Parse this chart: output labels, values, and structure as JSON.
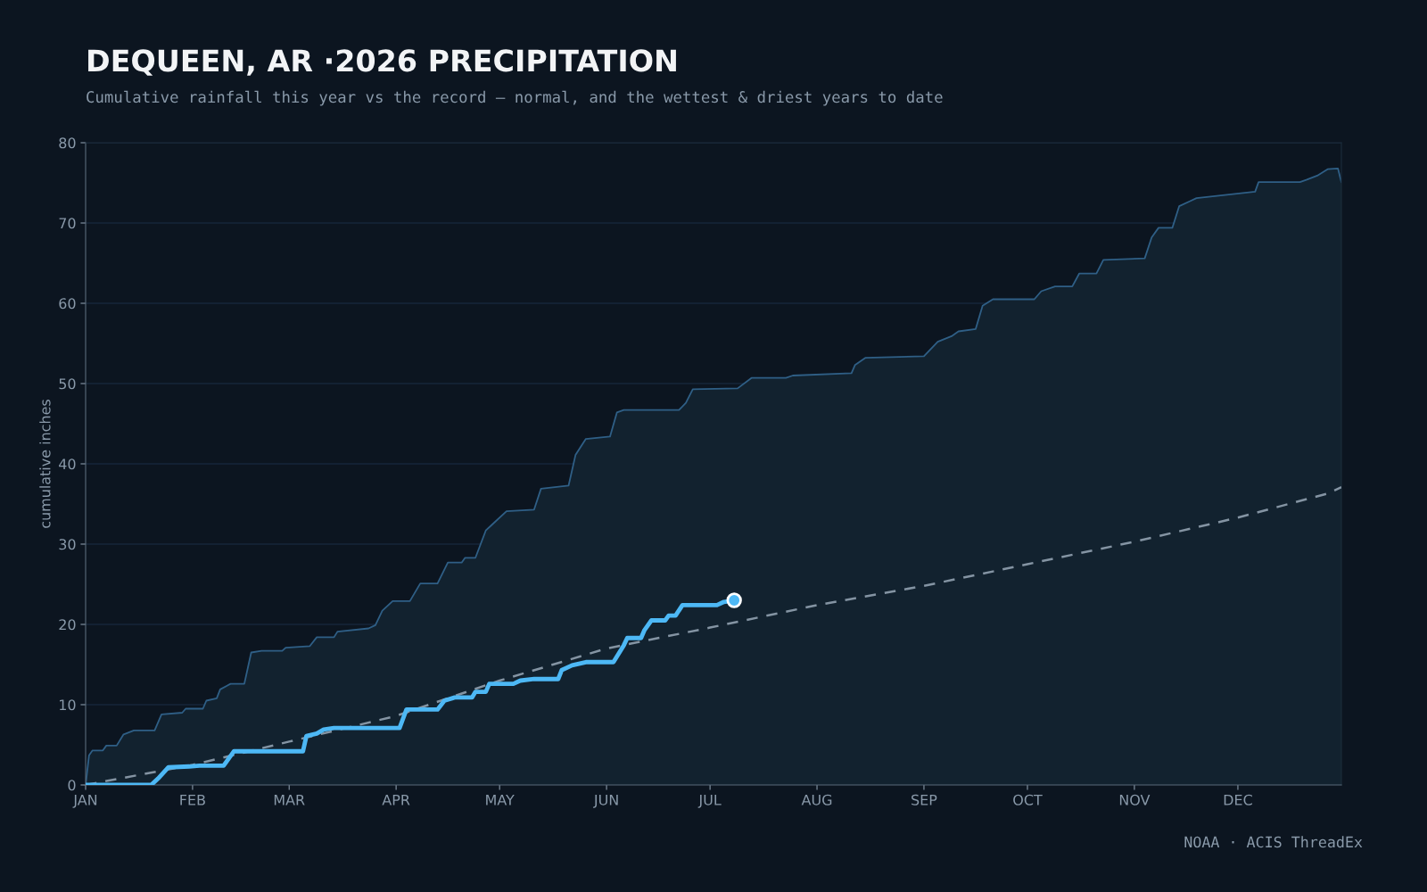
{
  "chart_data": {
    "type": "line",
    "title": "DEQUEEN, AR ·2026 PRECIPITATION",
    "subtitle": "Cumulative rainfall this year vs the record — normal, and the wettest & driest years to date",
    "ylabel": "cumulative inches",
    "annotations": [
      "NOAA · ACIS ThreadEx"
    ],
    "xlim": [
      "2026-01-01",
      "2026-12-31"
    ],
    "xticks": [
      {
        "value": "2026-01-01",
        "label": "JAN"
      },
      {
        "value": "2026-02-01",
        "label": "FEB"
      },
      {
        "value": "2026-03-01",
        "label": "MAR"
      },
      {
        "value": "2026-04-01",
        "label": "APR"
      },
      {
        "value": "2026-05-01",
        "label": "MAY"
      },
      {
        "value": "2026-06-01",
        "label": "JUN"
      },
      {
        "value": "2026-07-01",
        "label": "JUL"
      },
      {
        "value": "2026-08-01",
        "label": "AUG"
      },
      {
        "value": "2026-09-01",
        "label": "SEP"
      },
      {
        "value": "2026-10-01",
        "label": "OCT"
      },
      {
        "value": "2026-11-01",
        "label": "NOV"
      },
      {
        "value": "2026-12-01",
        "label": "DEC"
      }
    ],
    "ylim": [
      0,
      80
    ],
    "yticks": [
      0,
      10,
      20,
      30,
      40,
      50,
      60,
      70,
      80
    ],
    "grid": "y",
    "series": [
      {
        "type": "area",
        "color": "#2f5f86",
        "x": [
          "2026-01-01",
          "2026-01-02",
          "2026-01-03",
          "2026-01-06",
          "2026-01-07",
          "2026-01-10",
          "2026-01-12",
          "2026-01-15",
          "2026-01-21",
          "2026-01-23",
          "2026-01-29",
          "2026-01-30",
          "2026-02-04",
          "2026-02-05",
          "2026-02-08",
          "2026-02-09",
          "2026-02-12",
          "2026-02-16",
          "2026-02-18",
          "2026-02-21",
          "2026-02-27",
          "2026-02-28",
          "2026-03-07",
          "2026-03-09",
          "2026-03-14",
          "2026-03-15",
          "2026-03-24",
          "2026-03-26",
          "2026-03-28",
          "2026-03-31",
          "2026-04-05",
          "2026-04-08",
          "2026-04-13",
          "2026-04-16",
          "2026-04-20",
          "2026-04-21",
          "2026-04-24",
          "2026-04-27",
          "2026-04-29",
          "2026-05-03",
          "2026-05-11",
          "2026-05-13",
          "2026-05-17",
          "2026-05-21",
          "2026-05-23",
          "2026-05-26",
          "2026-06-02",
          "2026-06-04",
          "2026-06-06",
          "2026-06-22",
          "2026-06-24",
          "2026-06-26",
          "2026-07-09",
          "2026-07-13",
          "2026-07-23",
          "2026-07-25",
          "2026-08-11",
          "2026-08-12",
          "2026-08-15",
          "2026-09-01",
          "2026-09-05",
          "2026-09-09",
          "2026-09-11",
          "2026-09-16",
          "2026-09-18",
          "2026-09-21",
          "2026-10-03",
          "2026-10-05",
          "2026-10-09",
          "2026-10-14",
          "2026-10-16",
          "2026-10-21",
          "2026-10-23",
          "2026-11-04",
          "2026-11-06",
          "2026-11-08",
          "2026-11-12",
          "2026-11-14",
          "2026-11-17",
          "2026-11-19",
          "2026-12-06",
          "2026-12-07",
          "2026-12-19",
          "2026-12-21",
          "2026-12-24",
          "2026-12-27",
          "2026-12-30",
          "2026-12-31"
        ],
        "values": [
          0,
          3.7,
          4.3,
          4.3,
          4.9,
          4.9,
          6.3,
          6.8,
          6.8,
          8.8,
          9.0,
          9.5,
          9.5,
          10.5,
          10.8,
          11.9,
          12.6,
          12.6,
          16.5,
          16.7,
          16.7,
          17.1,
          17.3,
          18.4,
          18.4,
          19.1,
          19.5,
          19.9,
          21.7,
          22.9,
          22.9,
          25.1,
          25.1,
          27.7,
          27.7,
          28.3,
          28.3,
          31.7,
          32.5,
          34.1,
          34.3,
          36.9,
          37.1,
          37.3,
          41.1,
          43.1,
          43.4,
          46.4,
          46.7,
          46.7,
          47.6,
          49.3,
          49.4,
          50.7,
          50.7,
          51.0,
          51.3,
          52.3,
          53.2,
          53.4,
          55.2,
          55.9,
          56.5,
          56.8,
          59.7,
          60.5,
          60.5,
          61.5,
          62.1,
          62.1,
          63.7,
          63.7,
          65.4,
          65.6,
          68.2,
          69.4,
          69.4,
          72.1,
          72.7,
          73.1,
          73.9,
          75.1,
          75.1,
          75.4,
          75.9,
          76.7,
          76.8,
          75.1
        ]
      },
      {
        "type": "line",
        "line_style": "dashed",
        "color": "#8494a3",
        "x": [
          "2026-01-01",
          "2026-02-01",
          "2026-03-01",
          "2026-04-01",
          "2026-05-01",
          "2026-06-01",
          "2026-07-01",
          "2026-08-01",
          "2026-09-01",
          "2026-10-01",
          "2026-11-01",
          "2026-12-01",
          "2026-12-27",
          "2026-12-31"
        ],
        "values": [
          0,
          2.5,
          5.4,
          8.6,
          13.0,
          17.0,
          19.6,
          22.4,
          24.8,
          27.5,
          30.3,
          33.3,
          36.3,
          37.1
        ]
      },
      {
        "color": "#4db8f5",
        "x": [
          "2026-01-01",
          "2026-01-20",
          "2026-01-22",
          "2026-01-25",
          "2026-01-31",
          "2026-02-03",
          "2026-02-10",
          "2026-02-13",
          "2026-03-05",
          "2026-03-06",
          "2026-03-09",
          "2026-03-11",
          "2026-03-14",
          "2026-04-02",
          "2026-04-04",
          "2026-04-13",
          "2026-04-15",
          "2026-04-18",
          "2026-04-23",
          "2026-04-24",
          "2026-04-27",
          "2026-04-28",
          "2026-05-05",
          "2026-05-07",
          "2026-05-11",
          "2026-05-18",
          "2026-05-19",
          "2026-05-22",
          "2026-05-26",
          "2026-06-03",
          "2026-06-06",
          "2026-06-07",
          "2026-06-11",
          "2026-06-12",
          "2026-06-14",
          "2026-06-18",
          "2026-06-19",
          "2026-06-21",
          "2026-06-23",
          "2026-07-03",
          "2026-07-05",
          "2026-07-08"
        ],
        "values": [
          0,
          0,
          0.8,
          2.2,
          2.3,
          2.4,
          2.4,
          4.2,
          4.2,
          6.1,
          6.4,
          6.9,
          7.1,
          7.1,
          9.4,
          9.4,
          10.5,
          10.9,
          10.9,
          11.6,
          11.6,
          12.6,
          12.6,
          13.0,
          13.2,
          13.2,
          14.3,
          14.9,
          15.3,
          15.3,
          17.4,
          18.3,
          18.3,
          19.3,
          20.5,
          20.5,
          21.1,
          21.1,
          22.4,
          22.4,
          22.8,
          23.0
        ]
      },
      {
        "type": "scatter",
        "marker": "circle",
        "color": "#4db8f5",
        "x": [
          "2026-07-08"
        ],
        "values": [
          23.0
        ]
      }
    ]
  }
}
